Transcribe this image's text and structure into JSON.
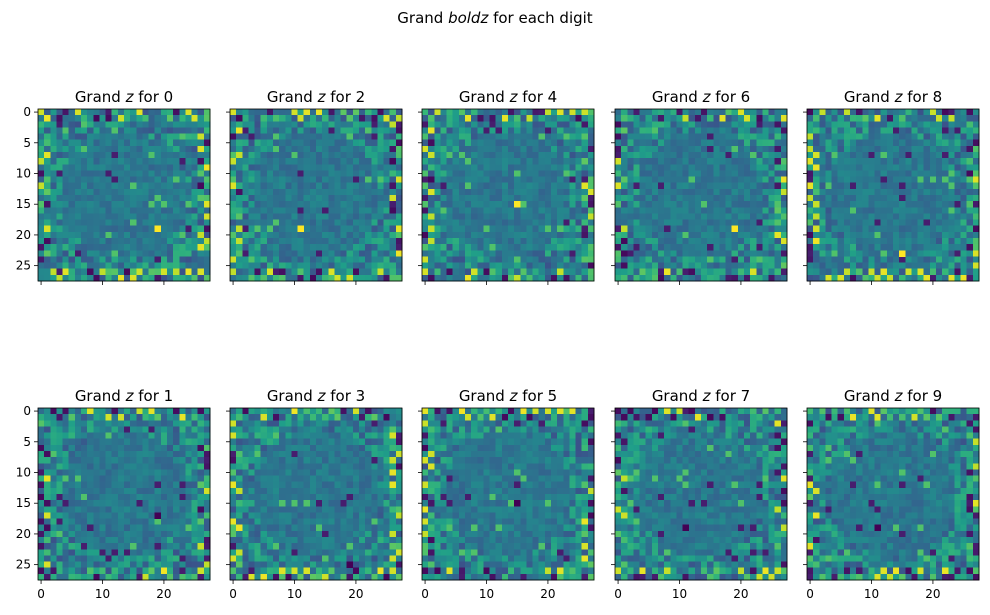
{
  "figure": {
    "suptitle_pre": "Grand ",
    "suptitle_italic": "boldz",
    "suptitle_post": " for each digit"
  },
  "chart_data": {
    "type": "heatmap",
    "colormap": "viridis",
    "grid_size": 28,
    "shared_axes": true,
    "xticks": [
      0,
      10,
      20
    ],
    "yticks": [
      0,
      5,
      10,
      15,
      20,
      25
    ],
    "xlim": [
      -0.5,
      27.5
    ],
    "ylim": [
      27.5,
      -0.5
    ],
    "panels": [
      {
        "digit": "0",
        "title_pre": "Grand ",
        "title_var": "z",
        "title_post": " for 0",
        "row": 0,
        "col": 0,
        "seed": 11,
        "highlights": [
          {
            "x": 19,
            "y": 19,
            "v": 1.0
          }
        ]
      },
      {
        "digit": "2",
        "title_pre": "Grand ",
        "title_var": "z",
        "title_post": " for 2",
        "row": 0,
        "col": 1,
        "seed": 23,
        "highlights": [
          {
            "x": 11,
            "y": 19,
            "v": 1.0
          }
        ]
      },
      {
        "digit": "4",
        "title_pre": "Grand ",
        "title_var": "z",
        "title_post": " for 4",
        "row": 0,
        "col": 2,
        "seed": 37,
        "highlights": [
          {
            "x": 15,
            "y": 15,
            "v": 1.0
          }
        ]
      },
      {
        "digit": "6",
        "title_pre": "Grand ",
        "title_var": "z",
        "title_post": " for 6",
        "row": 0,
        "col": 3,
        "seed": 41,
        "highlights": [
          {
            "x": 19,
            "y": 19,
            "v": 1.0
          }
        ]
      },
      {
        "digit": "8",
        "title_pre": "Grand ",
        "title_var": "z",
        "title_post": " for 8",
        "row": 0,
        "col": 4,
        "seed": 53,
        "highlights": [
          {
            "x": 15,
            "y": 23,
            "v": 1.0
          }
        ]
      },
      {
        "digit": "1",
        "title_pre": "Grand ",
        "title_var": "z",
        "title_post": " for 1",
        "row": 1,
        "col": 0,
        "seed": 61,
        "highlights": [
          {
            "x": 19,
            "y": 17,
            "v": 0.0
          }
        ]
      },
      {
        "digit": "3",
        "title_pre": "Grand ",
        "title_var": "z",
        "title_post": " for 3",
        "row": 1,
        "col": 1,
        "seed": 73,
        "highlights": [
          {
            "x": 19,
            "y": 25,
            "v": 0.0
          }
        ]
      },
      {
        "digit": "5",
        "title_pre": "Grand ",
        "title_var": "z",
        "title_post": " for 5",
        "row": 1,
        "col": 2,
        "seed": 89,
        "highlights": [
          {
            "x": 15,
            "y": 15,
            "v": 0.0
          }
        ]
      },
      {
        "digit": "7",
        "title_pre": "Grand ",
        "title_var": "z",
        "title_post": " for 7",
        "row": 1,
        "col": 3,
        "seed": 97,
        "highlights": [
          {
            "x": 11,
            "y": 19,
            "v": 0.0
          }
        ]
      },
      {
        "digit": "9",
        "title_pre": "Grand ",
        "title_var": "z",
        "title_post": " for 9",
        "row": 1,
        "col": 4,
        "seed": 103,
        "highlights": [
          {
            "x": 11,
            "y": 19,
            "v": 0.0
          }
        ]
      }
    ]
  }
}
